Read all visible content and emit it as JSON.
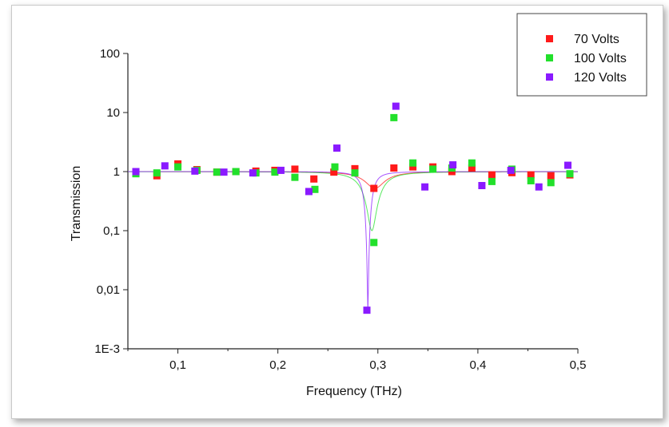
{
  "chart_data": {
    "type": "scatter",
    "xlabel": "Frequency (THz)",
    "ylabel": "Transmission",
    "xlim": [
      0.05,
      0.5
    ],
    "ylim": [
      0.001,
      100
    ],
    "yscale": "log",
    "x_ticks": [
      0.1,
      0.2,
      0.3,
      0.4,
      0.5
    ],
    "x_tick_labels": [
      "0,1",
      "0,2",
      "0,3",
      "0,4",
      "0,5"
    ],
    "y_ticks": [
      0.001,
      0.01,
      0.1,
      1,
      10,
      100
    ],
    "y_tick_labels": [
      "1E-3",
      "0,01",
      "0,1",
      "1",
      "10",
      "100"
    ],
    "legend_position": "top-right",
    "grid": false,
    "series": [
      {
        "name": "70 Volts",
        "color": "#ff1a1a",
        "points": [
          [
            0.058,
            0.98
          ],
          [
            0.079,
            0.85
          ],
          [
            0.1,
            1.35
          ],
          [
            0.119,
            1.08
          ],
          [
            0.139,
            0.98
          ],
          [
            0.158,
            1.0
          ],
          [
            0.178,
            1.02
          ],
          [
            0.197,
            1.05
          ],
          [
            0.217,
            1.1
          ],
          [
            0.236,
            0.75
          ],
          [
            0.256,
            0.98
          ],
          [
            0.277,
            1.12
          ],
          [
            0.296,
            0.52
          ],
          [
            0.316,
            1.15
          ],
          [
            0.335,
            1.2
          ],
          [
            0.355,
            1.2
          ],
          [
            0.374,
            1.0
          ],
          [
            0.394,
            1.15
          ],
          [
            0.414,
            0.88
          ],
          [
            0.434,
            0.96
          ],
          [
            0.453,
            0.88
          ],
          [
            0.473,
            0.85
          ],
          [
            0.492,
            0.88
          ]
        ],
        "fit": {
          "center": 0.297,
          "width": 0.014,
          "depth": 0.48
        }
      },
      {
        "name": "100 Volts",
        "color": "#22e02b",
        "points": [
          [
            0.058,
            0.92
          ],
          [
            0.079,
            0.95
          ],
          [
            0.1,
            1.2
          ],
          [
            0.119,
            1.05
          ],
          [
            0.139,
            0.98
          ],
          [
            0.158,
            1.0
          ],
          [
            0.178,
            0.95
          ],
          [
            0.197,
            0.98
          ],
          [
            0.217,
            0.8
          ],
          [
            0.237,
            0.5
          ],
          [
            0.257,
            1.2
          ],
          [
            0.277,
            0.95
          ],
          [
            0.296,
            0.063
          ],
          [
            0.316,
            8.2
          ],
          [
            0.335,
            1.4
          ],
          [
            0.355,
            1.1
          ],
          [
            0.374,
            1.15
          ],
          [
            0.394,
            1.4
          ],
          [
            0.414,
            0.68
          ],
          [
            0.434,
            1.1
          ],
          [
            0.453,
            0.7
          ],
          [
            0.473,
            0.65
          ],
          [
            0.492,
            0.92
          ]
        ],
        "fit": {
          "center": 0.294,
          "width": 0.012,
          "depth": 0.9
        }
      },
      {
        "name": "120 Volts",
        "color": "#8a1aff",
        "points": [
          [
            0.058,
            1.0
          ],
          [
            0.087,
            1.25
          ],
          [
            0.117,
            1.02
          ],
          [
            0.146,
            0.98
          ],
          [
            0.175,
            0.95
          ],
          [
            0.203,
            1.05
          ],
          [
            0.231,
            0.46
          ],
          [
            0.259,
            2.5
          ],
          [
            0.289,
            0.0045
          ],
          [
            0.318,
            12.8
          ],
          [
            0.347,
            0.55
          ],
          [
            0.375,
            1.3
          ],
          [
            0.404,
            0.58
          ],
          [
            0.433,
            1.05
          ],
          [
            0.461,
            0.55
          ],
          [
            0.49,
            1.28
          ]
        ],
        "fit": {
          "center": 0.29,
          "width": 0.006,
          "depth": 0.996
        }
      }
    ]
  }
}
